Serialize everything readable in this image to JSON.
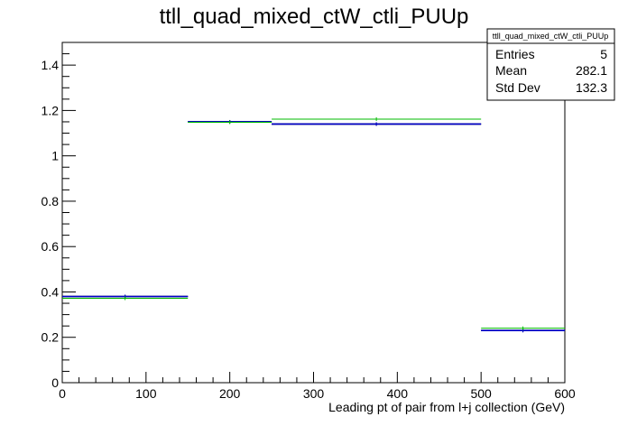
{
  "chart_data": {
    "type": "histogram",
    "title": "ttll_quad_mixed_ctW_ctli_PUUp",
    "xlabel": "Leading pt of pair from l+j collection (GeV)",
    "ylabel": "",
    "xlim": [
      0,
      600
    ],
    "ylim": [
      0,
      1.5
    ],
    "x_ticks": [
      "0",
      "100",
      "200",
      "300",
      "400",
      "500",
      "600"
    ],
    "y_ticks": [
      "0",
      "0.2",
      "0.4",
      "0.6",
      "0.8",
      "1",
      "1.2",
      "1.4"
    ],
    "bin_edges": [
      0,
      150,
      250,
      500,
      600
    ],
    "series": [
      {
        "color": "#000000",
        "values": [
          0.38,
          1.15,
          1.14,
          0.23
        ]
      },
      {
        "color": "#0000cc",
        "values": [
          0.38,
          1.15,
          1.14,
          0.23
        ]
      },
      {
        "color": "#00bb00",
        "values": [
          0.372,
          1.148,
          1.162,
          0.24
        ]
      }
    ],
    "stats_box": {
      "name": "ttll_quad_mixed_ctW_ctli_PUUp",
      "rows": [
        {
          "label": "Entries",
          "value": "5"
        },
        {
          "label": "Mean",
          "value": "282.1"
        },
        {
          "label": "Std Dev",
          "value": "132.3"
        }
      ]
    },
    "grid": false,
    "legend": "none"
  }
}
